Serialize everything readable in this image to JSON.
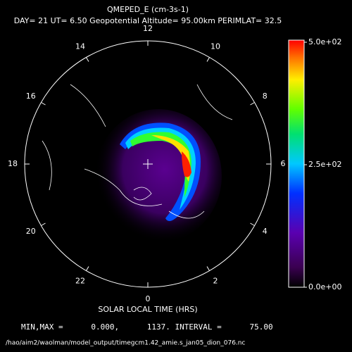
{
  "header": {
    "title": "QMEPED_E (cm-3s-1)",
    "subtitle": "DAY= 21 UT= 6.50 Geopotential Altitude= 95.00km PERIMLAT= 32.5"
  },
  "polar": {
    "hours": [
      12,
      14,
      16,
      18,
      20,
      22,
      0,
      2,
      4,
      6,
      8,
      10
    ],
    "axis_label": "SOLAR LOCAL TIME (HRS)"
  },
  "colorbar": {
    "lim": [
      0,
      500
    ],
    "ticks": [
      {
        "value": 500,
        "label": "5.0e+02"
      },
      {
        "value": 250,
        "label": "2.5e+02"
      },
      {
        "value": 0,
        "label": "0.0e+00"
      }
    ]
  },
  "footer": {
    "stats": "MIN,MAX =      0.000,      1137. INTERVAL =      75.00",
    "file": "/hao/aim2/waolman/model_output/timegcm1.42_amie.s_jan05_dion_076.nc"
  }
}
